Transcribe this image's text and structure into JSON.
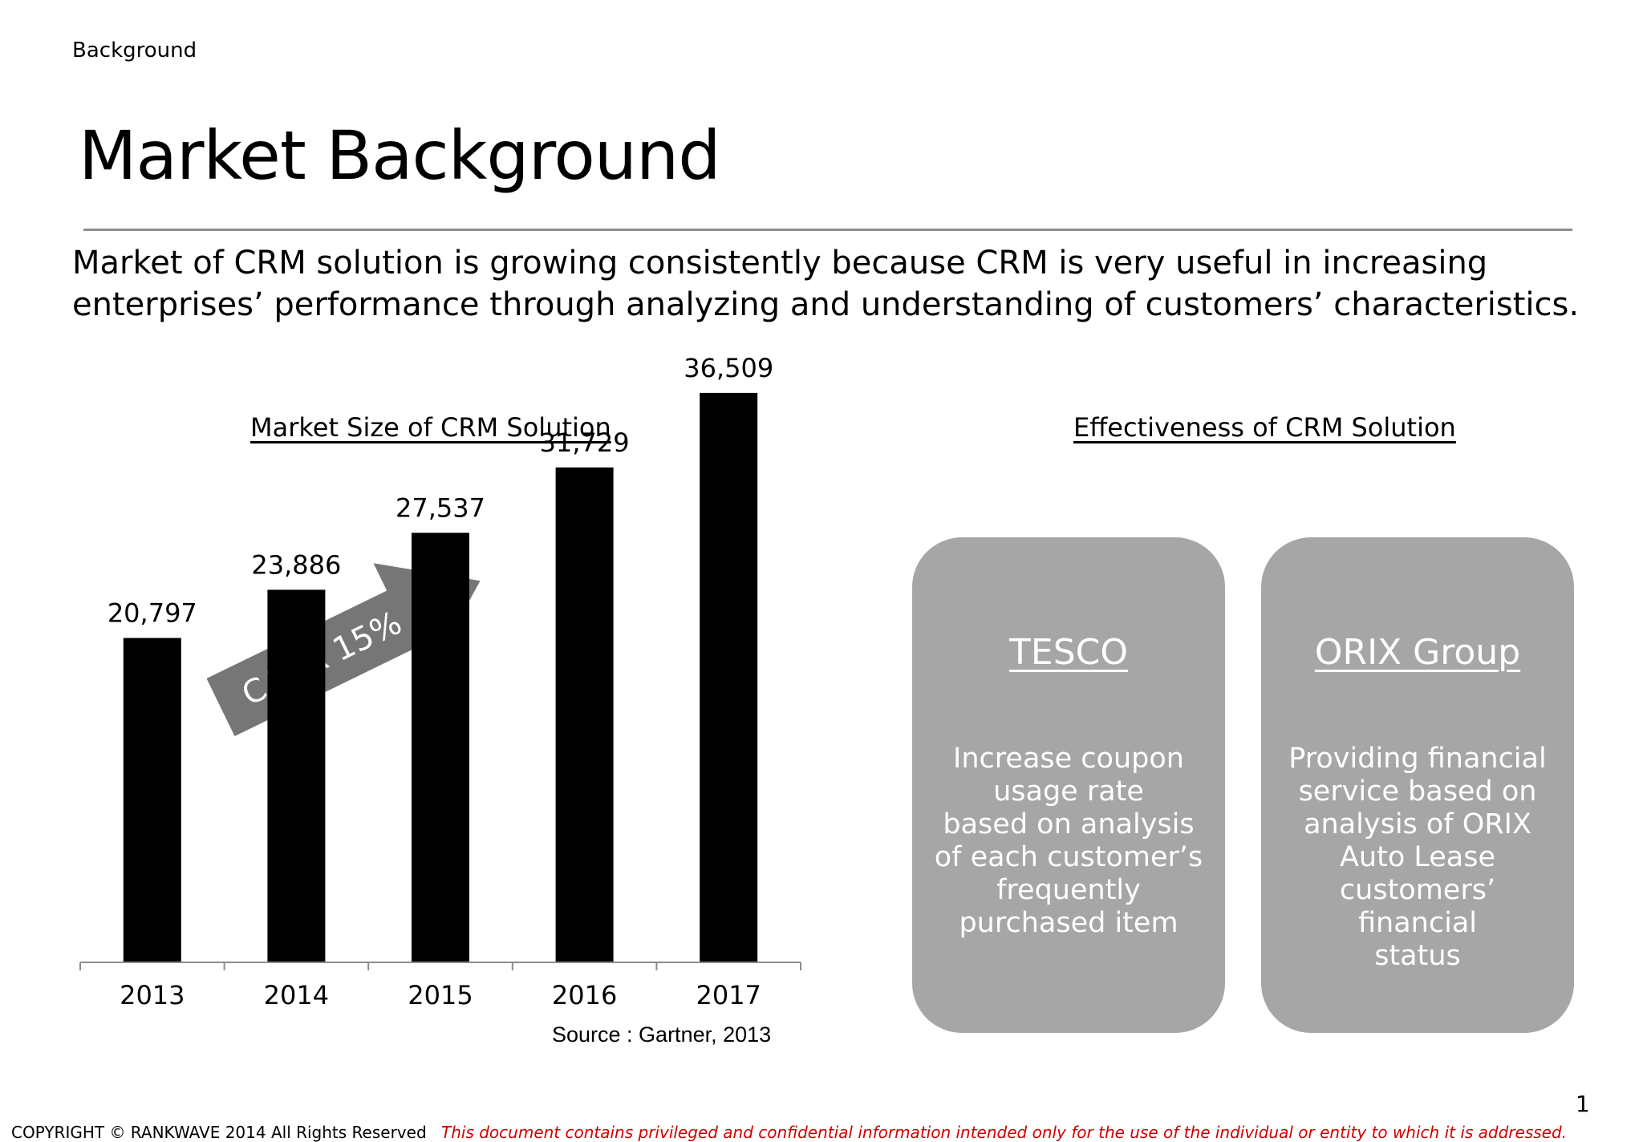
{
  "header": {
    "section": "Background",
    "title": "Market Background"
  },
  "intro": "Market of CRM solution is growing consistently because CRM is very useful in increasing enterprises’ performance through analyzing and understanding of customers’ characteristics.",
  "market_chart": {
    "heading": "Market Size of CRM Solution",
    "arrow_label": "CAGR 15%",
    "source": "Source : Gartner, 2013"
  },
  "chart_data": {
    "type": "bar",
    "title": "Market Size of CRM Solution",
    "categories": [
      "2013",
      "2014",
      "2015",
      "2016",
      "2017"
    ],
    "values": [
      20797,
      23886,
      27537,
      31729,
      36509
    ],
    "value_labels": [
      "20,797",
      "23,886",
      "27,537",
      "31,729",
      "36,509"
    ],
    "xlabel": "",
    "ylabel": "",
    "ylim": [
      0,
      40000
    ],
    "grid": false,
    "legend": "none",
    "bar_color": "#000000",
    "annotation": "CAGR 15%"
  },
  "effectiveness": {
    "heading": "Effectiveness of CRM Solution",
    "cards": [
      {
        "title": "TESCO",
        "body": "Increase coupon\nusage rate\nbased on analysis\nof each customer’s\nfrequently\npurchased item"
      },
      {
        "title": "ORIX Group",
        "body": "Providing financial\nservice based on\nanalysis of ORIX\nAuto Lease\ncustomers’ financial\nstatus"
      }
    ]
  },
  "page_number": "1",
  "footer": {
    "copyright": "COPYRIGHT © RANKWAVE 2014 All Rights Reserved",
    "notice": "This document contains privileged and confidential information intended only for the use of the individual or entity to which it is addressed."
  },
  "colors": {
    "card_bg": "#a6a6a6",
    "arrow": "#767676",
    "notice": "#d00000",
    "rule": "#8c8c8c"
  }
}
